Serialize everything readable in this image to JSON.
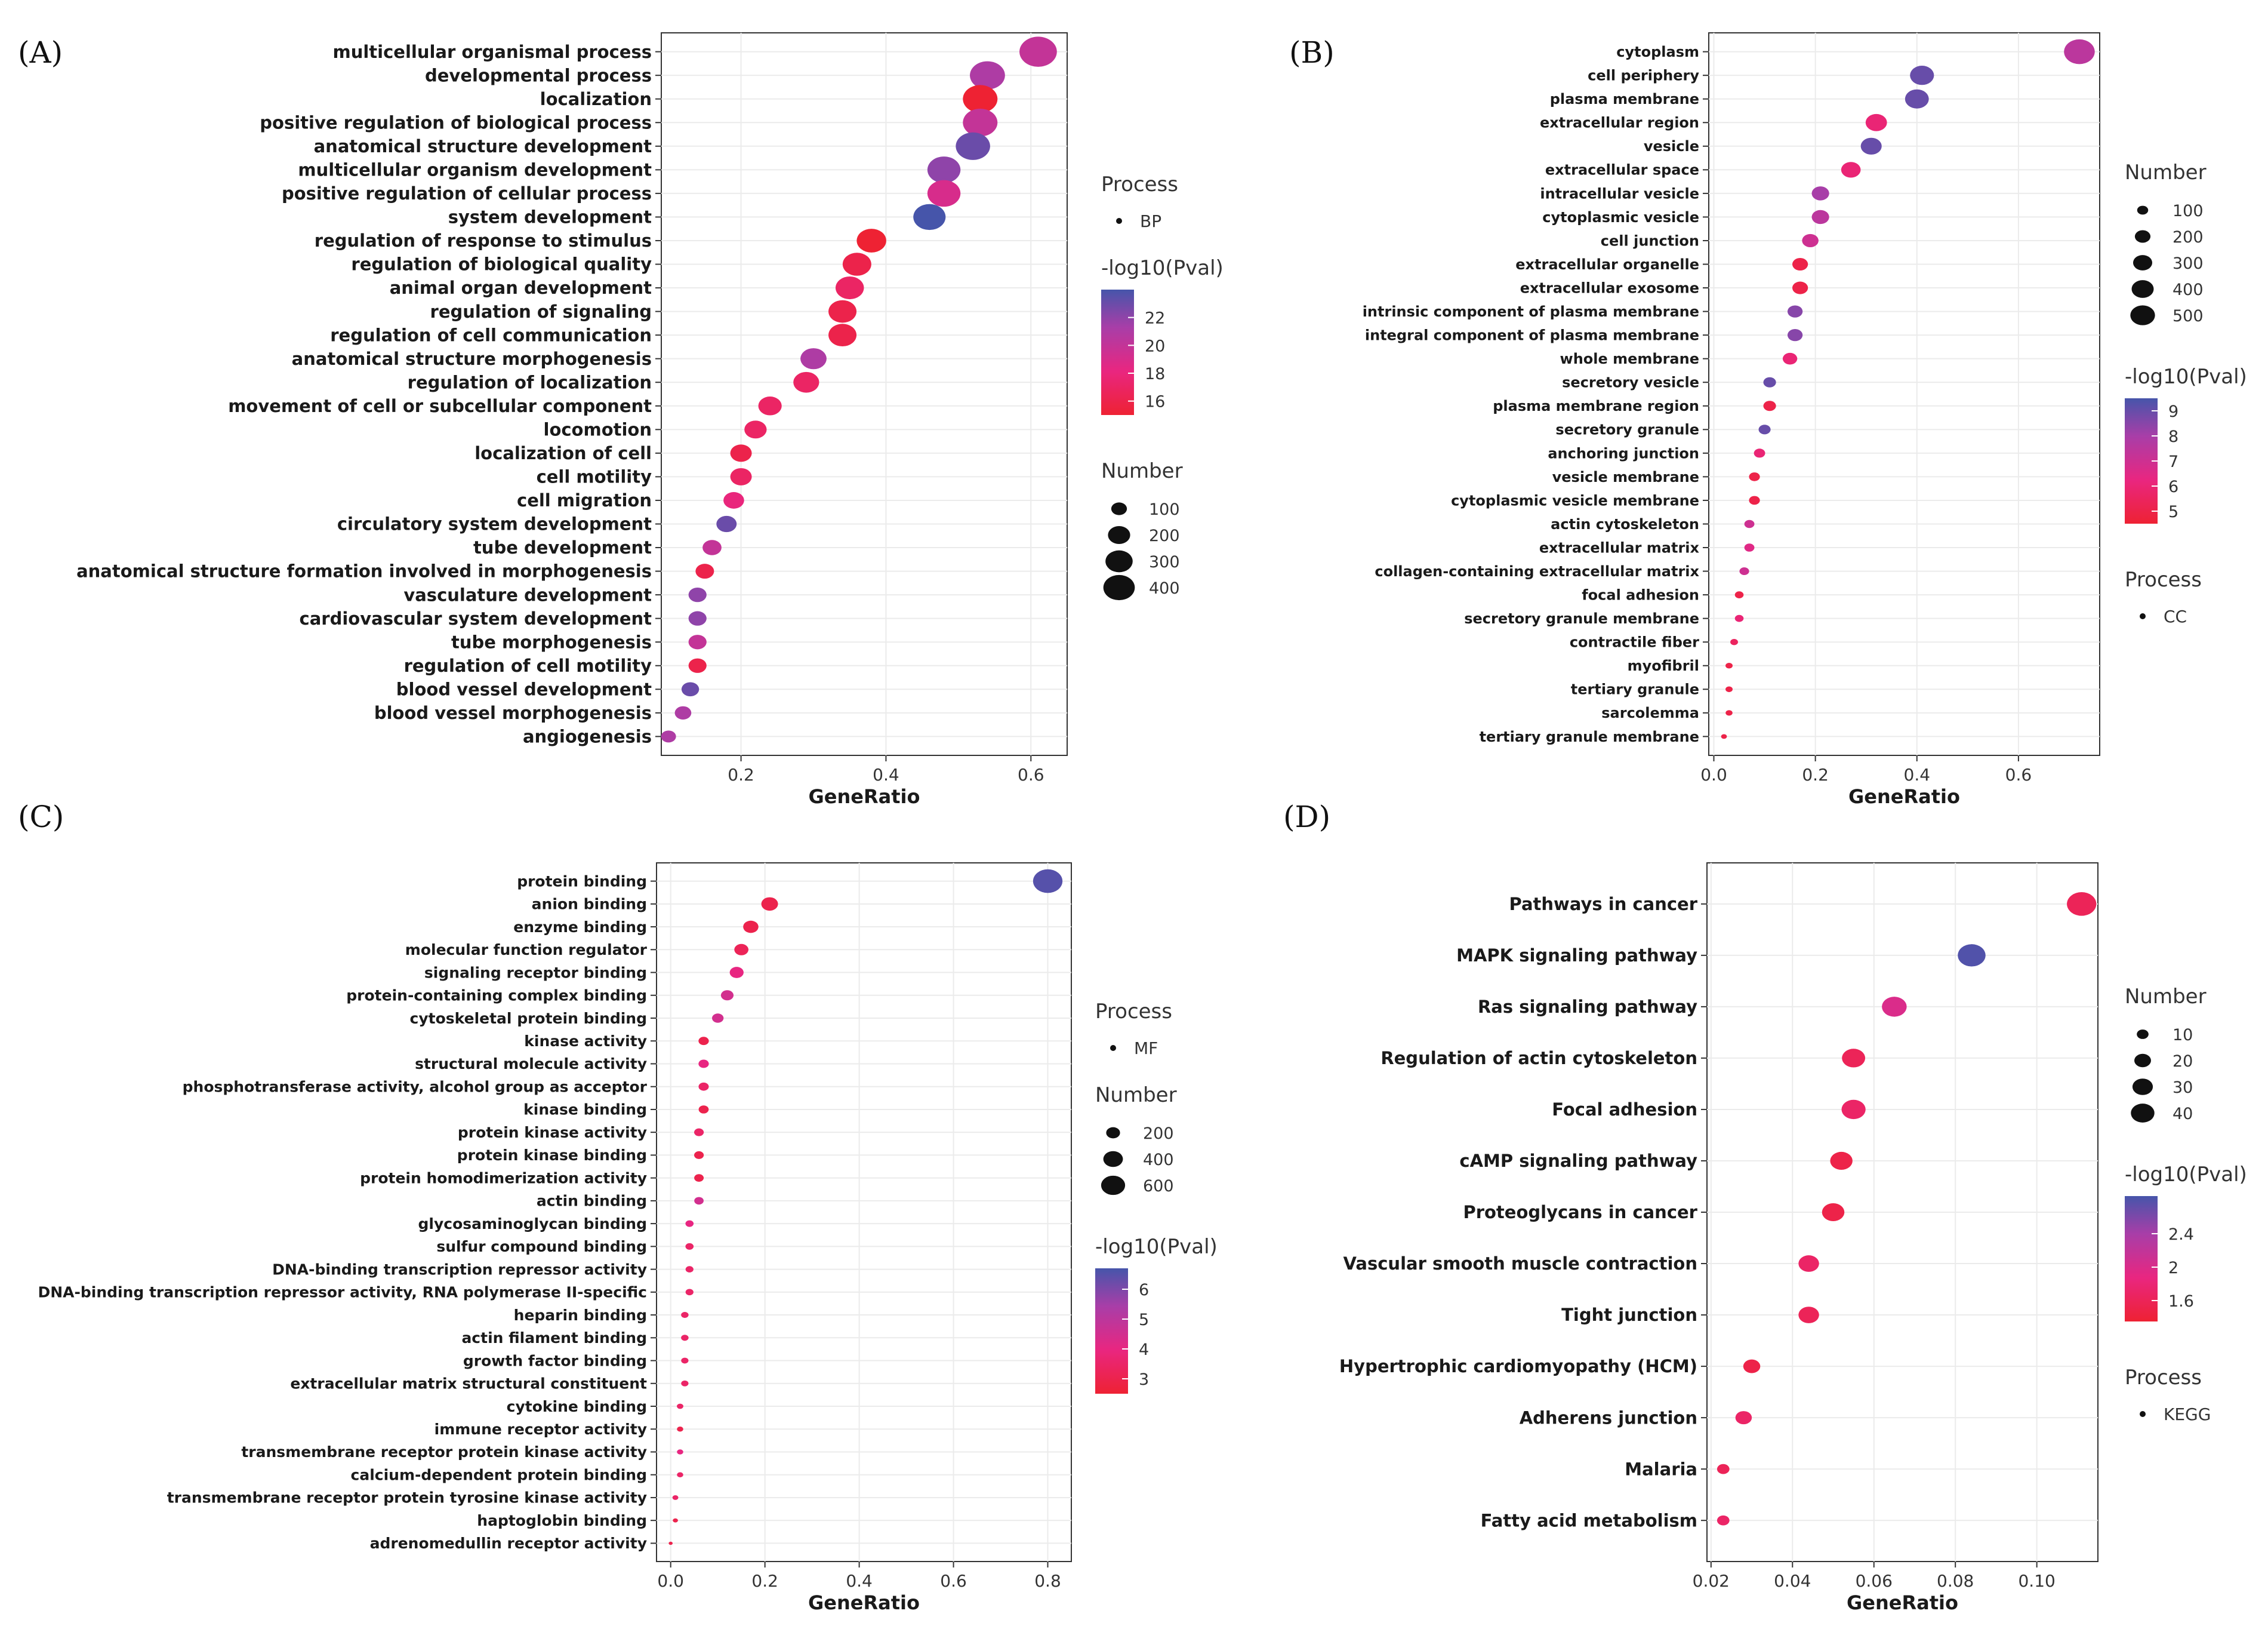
{
  "chart_data": [
    {
      "panel_label": "(A)",
      "type": "scatter",
      "xlabel": "GeneRatio",
      "xticks": [
        "0.2",
        "0.4",
        "0.6"
      ],
      "xlim": [
        0.09,
        0.65
      ],
      "categories": [
        "multicellular organismal process",
        "developmental process",
        "localization",
        "positive regulation of biological process",
        "anatomical structure development",
        "multicellular organism development",
        "positive regulation of cellular process",
        "system development",
        "regulation of response to stimulus",
        "regulation of biological quality",
        "animal organ development",
        "regulation of signaling",
        "regulation of cell communication",
        "anatomical structure morphogenesis",
        "regulation of localization",
        "movement of cell or subcellular component",
        "locomotion",
        "localization of cell",
        "cell motility",
        "cell migration",
        "circulatory system development",
        "tube development",
        "anatomical structure formation involved in morphogenesis",
        "vasculature development",
        "cardiovascular system development",
        "tube morphogenesis",
        "regulation of cell motility",
        "blood vessel development",
        "blood vessel morphogenesis",
        "angiogenesis"
      ],
      "x": [
        0.61,
        0.54,
        0.53,
        0.53,
        0.52,
        0.48,
        0.48,
        0.46,
        0.38,
        0.36,
        0.35,
        0.34,
        0.34,
        0.3,
        0.29,
        0.24,
        0.22,
        0.2,
        0.2,
        0.19,
        0.18,
        0.16,
        0.15,
        0.14,
        0.14,
        0.14,
        0.14,
        0.13,
        0.12,
        0.1
      ],
      "size": [
        410,
        360,
        350,
        350,
        345,
        320,
        320,
        305,
        255,
        240,
        235,
        230,
        230,
        200,
        195,
        160,
        145,
        135,
        135,
        125,
        120,
        105,
        100,
        95,
        95,
        95,
        95,
        90,
        80,
        65
      ],
      "color": [
        20,
        21,
        15,
        20,
        23,
        22,
        19,
        24,
        15,
        16,
        17,
        16,
        16,
        21,
        17,
        17,
        17,
        16,
        17,
        18,
        23,
        20,
        16,
        22,
        22,
        20,
        16,
        23,
        21,
        21
      ],
      "legend_process_title": "Process",
      "legend_process_label": "BP",
      "legend_color_title": "-log10(Pval)",
      "color_ticks": [
        22,
        20,
        18,
        16
      ],
      "color_range": [
        15,
        24
      ],
      "legend_size_title": "Number",
      "size_ticks": [
        100,
        200,
        300,
        400
      ]
    },
    {
      "panel_label": "(B)",
      "type": "scatter",
      "xlabel": "GeneRatio",
      "xticks": [
        "0.0",
        "0.2",
        "0.4",
        "0.6"
      ],
      "xlim": [
        -0.01,
        0.76
      ],
      "categories": [
        "cytoplasm",
        "cell periphery",
        "plasma membrane",
        "extracellular region",
        "vesicle",
        "extracellular space",
        "intracellular vesicle",
        "cytoplasmic vesicle",
        "cell junction",
        "extracellular organelle",
        "extracellular exosome",
        "intrinsic component of plasma membrane",
        "integral component of plasma membrane",
        "whole membrane",
        "secretory vesicle",
        "plasma membrane region",
        "secretory granule",
        "anchoring junction",
        "vesicle membrane",
        "cytoplasmic vesicle membrane",
        "actin cytoskeleton",
        "extracellular matrix",
        "collagen-containing extracellular matrix",
        "focal adhesion",
        "secretory granule membrane",
        "contractile fiber",
        "myofibril",
        "tertiary granule",
        "sarcolemma",
        "tertiary granule membrane"
      ],
      "x": [
        0.72,
        0.41,
        0.4,
        0.32,
        0.31,
        0.27,
        0.21,
        0.21,
        0.19,
        0.17,
        0.17,
        0.16,
        0.16,
        0.15,
        0.11,
        0.11,
        0.1,
        0.09,
        0.08,
        0.08,
        0.07,
        0.07,
        0.06,
        0.05,
        0.05,
        0.04,
        0.03,
        0.03,
        0.03,
        0.02
      ],
      "size": [
        560,
        340,
        335,
        270,
        260,
        225,
        180,
        180,
        160,
        145,
        145,
        135,
        135,
        125,
        95,
        95,
        85,
        75,
        70,
        70,
        60,
        60,
        55,
        45,
        45,
        35,
        30,
        30,
        28,
        20
      ],
      "color": [
        7.5,
        9,
        9,
        6,
        9,
        6,
        8,
        7.5,
        7,
        5,
        5,
        8.5,
        8.5,
        6,
        9,
        5,
        9,
        6,
        5,
        5,
        7,
        6.5,
        7,
        5,
        6,
        5.5,
        5,
        5,
        5,
        5
      ],
      "legend_size_title": "Number",
      "size_ticks": [
        100,
        200,
        300,
        400,
        500
      ],
      "legend_color_title": "-log10(Pval)",
      "color_ticks": [
        9,
        8,
        7,
        6,
        5
      ],
      "color_range": [
        4.5,
        9.5
      ],
      "legend_process_title": "Process",
      "legend_process_label": "CC"
    },
    {
      "panel_label": "(C)",
      "type": "scatter",
      "xlabel": "GeneRatio",
      "xticks": [
        "0.0",
        "0.2",
        "0.4",
        "0.6",
        "0.8"
      ],
      "xlim": [
        -0.03,
        0.85
      ],
      "categories": [
        "protein binding",
        "anion binding",
        "enzyme binding",
        "molecular function regulator",
        "signaling receptor binding",
        "protein-containing complex binding",
        "cytoskeletal protein binding",
        "kinase activity",
        "structural molecule activity",
        "phosphotransferase activity, alcohol group as acceptor",
        "kinase binding",
        "protein kinase activity",
        "protein kinase binding",
        "protein homodimerization activity",
        "actin binding",
        "glycosaminoglycan binding",
        "sulfur compound binding",
        "DNA-binding transcription repressor activity",
        "DNA-binding transcription repressor activity, RNA polymerase II-specific",
        "heparin binding",
        "actin filament binding",
        "growth factor binding",
        "extracellular matrix structural constituent",
        "cytokine binding",
        "immune receptor activity",
        "transmembrane receptor protein kinase activity",
        "calcium-dependent protein binding",
        "transmembrane receptor protein tyrosine kinase activity",
        "haptoglobin binding",
        "adrenomedullin receptor activity"
      ],
      "x": [
        0.8,
        0.21,
        0.17,
        0.15,
        0.14,
        0.12,
        0.1,
        0.07,
        0.07,
        0.07,
        0.07,
        0.06,
        0.06,
        0.06,
        0.06,
        0.04,
        0.04,
        0.04,
        0.04,
        0.03,
        0.03,
        0.03,
        0.03,
        0.02,
        0.02,
        0.02,
        0.02,
        0.01,
        0.01,
        0.0
      ],
      "size": [
        650,
        210,
        175,
        150,
        145,
        120,
        100,
        80,
        80,
        78,
        75,
        70,
        70,
        68,
        66,
        50,
        50,
        47,
        47,
        42,
        42,
        40,
        40,
        32,
        30,
        30,
        30,
        26,
        20,
        12
      ],
      "color": [
        6.5,
        3,
        3,
        3.2,
        4,
        4.5,
        4.5,
        3,
        4,
        3.5,
        3,
        3.5,
        3,
        3,
        4.5,
        4,
        3.5,
        3.5,
        3.5,
        3.5,
        3.5,
        3.5,
        3.5,
        3.5,
        3,
        4,
        3.5,
        3.5,
        3,
        3
      ],
      "legend_process_title": "Process",
      "legend_process_label": "MF",
      "legend_size_title": "Number",
      "size_ticks": [
        200,
        400,
        600
      ],
      "legend_color_title": "-log10(Pval)",
      "color_ticks": [
        6,
        5,
        4,
        3
      ],
      "color_range": [
        2.5,
        6.7
      ]
    },
    {
      "panel_label": "(D)",
      "type": "scatter",
      "xlabel": "GeneRatio",
      "xticks": [
        "0.02",
        "0.04",
        "0.06",
        "0.08",
        "0.10"
      ],
      "xlim": [
        0.019,
        0.115
      ],
      "categories": [
        "Pathways in cancer",
        "MAPK signaling pathway",
        "Ras signaling pathway",
        "Regulation of actin cytoskeleton",
        "Focal adhesion",
        "cAMP signaling pathway",
        "Proteoglycans in cancer",
        "Vascular smooth muscle contraction",
        "Tight junction",
        "Hypertrophic cardiomyopathy (HCM)",
        "Adherens junction",
        "Malaria",
        "Fatty acid metabolism"
      ],
      "x": [
        0.111,
        0.084,
        0.065,
        0.055,
        0.055,
        0.052,
        0.05,
        0.044,
        0.044,
        0.03,
        0.028,
        0.023,
        0.023
      ],
      "size": [
        45,
        40,
        32,
        28,
        30,
        26,
        26,
        22,
        22,
        15,
        14,
        8,
        8
      ],
      "color": [
        1.6,
        2.8,
        2.0,
        1.6,
        1.7,
        1.5,
        1.5,
        1.7,
        1.6,
        1.5,
        1.7,
        1.6,
        1.7
      ],
      "legend_size_title": "Number",
      "size_ticks": [
        10,
        20,
        30,
        40
      ],
      "legend_color_title": "-log10(Pval)",
      "color_ticks": [
        2.4,
        2.0,
        1.6
      ],
      "color_range": [
        1.35,
        2.85
      ],
      "legend_process_title": "Process",
      "legend_process_label": "KEGG"
    }
  ]
}
